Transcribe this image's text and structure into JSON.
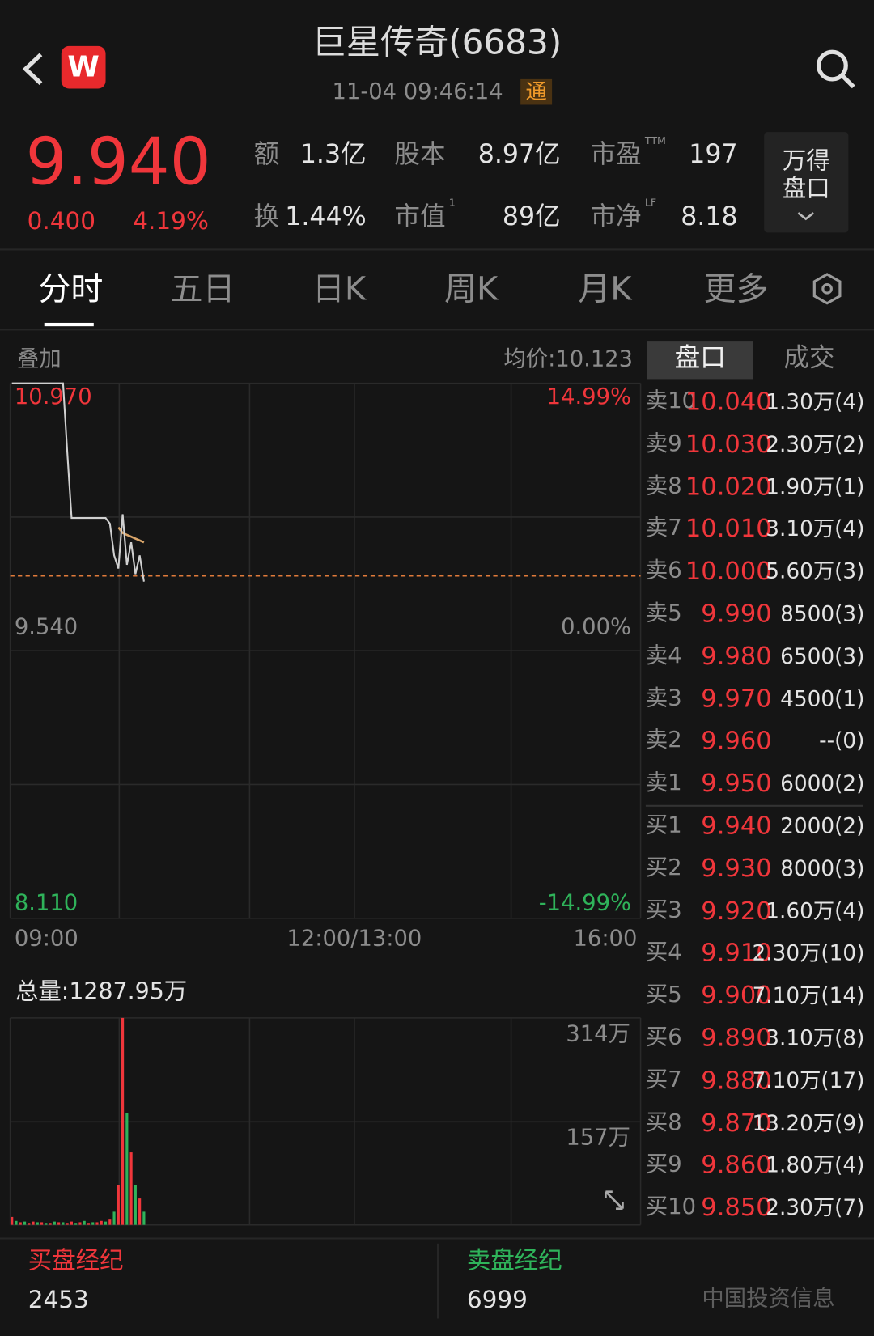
{
  "header": {
    "logo": "W",
    "title": "巨星传奇(6683)",
    "datetime": "11-04 09:46:14",
    "badge": "通"
  },
  "quote": {
    "price": "9.940",
    "change": "0.400",
    "change_pct": "4.19%",
    "stats": [
      {
        "label": "额",
        "sup": "",
        "value": "1.3亿"
      },
      {
        "label": "股本",
        "sup": "",
        "value": "8.97亿"
      },
      {
        "label": "市盈",
        "sup": "TTM",
        "value": "197"
      },
      {
        "label": "换",
        "sup": "",
        "value": "1.44%"
      },
      {
        "label": "市值",
        "sup": "1",
        "value": "89亿"
      },
      {
        "label": "市净",
        "sup": "LF",
        "value": "8.18"
      }
    ],
    "button": [
      "万得",
      "盘口"
    ]
  },
  "tabs": [
    "分时",
    "五日",
    "日K",
    "周K",
    "月K",
    "更多"
  ],
  "panel_tabs": [
    "盘口",
    "成交"
  ],
  "intraday": {
    "overlay": "叠加",
    "avg_label": "均价:10.123",
    "ylim": [
      8.11,
      10.97
    ],
    "yticks": [
      {
        "value": 10.97,
        "label": "10.970"
      },
      {
        "value": 9.54,
        "label": "9.540"
      },
      {
        "value": 8.11,
        "label": "8.110"
      }
    ],
    "pct_labels": [
      "14.99%",
      "0.00%",
      "-14.99%"
    ],
    "x_labels": [
      "09:00",
      "12:00/13:00",
      "16:00"
    ],
    "price": [
      10.97,
      10.97,
      10.97,
      10.97,
      10.97,
      10.97,
      10.97,
      10.97,
      10.97,
      10.97,
      10.97,
      10.97,
      10.97,
      10.6,
      10.25,
      10.25,
      10.25,
      10.25,
      10.25,
      10.25,
      10.25,
      10.25,
      10.25,
      10.22,
      10.05,
      9.98,
      10.27,
      10.0,
      10.12,
      9.95,
      10.05,
      9.91
    ],
    "avg": [
      null,
      null,
      null,
      null,
      null,
      null,
      null,
      null,
      null,
      null,
      null,
      null,
      null,
      null,
      null,
      null,
      null,
      null,
      null,
      null,
      null,
      null,
      null,
      null,
      null,
      10.2,
      10.17,
      10.16,
      10.15,
      10.14,
      10.13,
      10.12
    ]
  },
  "volume": {
    "total_label": "总量:1287.95万",
    "ylim": [
      0,
      314
    ],
    "yticks": [
      {
        "value": 314,
        "label": "314万"
      },
      {
        "value": 157,
        "label": "157万"
      }
    ],
    "up": [
      12,
      null,
      4,
      null,
      3,
      5,
      null,
      4,
      null,
      3,
      null,
      4,
      null,
      3,
      5,
      null,
      4,
      null,
      3,
      null,
      4,
      6,
      null,
      8,
      null,
      60,
      314,
      null,
      110,
      null,
      40,
      null
    ],
    "down": [
      null,
      6,
      null,
      5,
      null,
      null,
      4,
      null,
      3,
      null,
      5,
      null,
      4,
      null,
      null,
      3,
      null,
      6,
      null,
      4,
      null,
      null,
      5,
      null,
      20,
      null,
      null,
      170,
      null,
      60,
      null,
      20
    ]
  },
  "order_book": {
    "asks": [
      {
        "level": "卖10",
        "price": "10.040",
        "qty": "1.30万(4)"
      },
      {
        "level": "卖9",
        "price": "10.030",
        "qty": "2.30万(2)"
      },
      {
        "level": "卖8",
        "price": "10.020",
        "qty": "1.90万(1)"
      },
      {
        "level": "卖7",
        "price": "10.010",
        "qty": "3.10万(4)"
      },
      {
        "level": "卖6",
        "price": "10.000",
        "qty": "5.60万(3)"
      },
      {
        "level": "卖5",
        "price": "9.990",
        "qty": "8500(3)"
      },
      {
        "level": "卖4",
        "price": "9.980",
        "qty": "6500(3)"
      },
      {
        "level": "卖3",
        "price": "9.970",
        "qty": "4500(1)"
      },
      {
        "level": "卖2",
        "price": "9.960",
        "qty": "--(0)"
      },
      {
        "level": "卖1",
        "price": "9.950",
        "qty": "6000(2)"
      }
    ],
    "bids": [
      {
        "level": "买1",
        "price": "9.940",
        "qty": "2000(2)"
      },
      {
        "level": "买2",
        "price": "9.930",
        "qty": "8000(3)"
      },
      {
        "level": "买3",
        "price": "9.920",
        "qty": "1.60万(4)"
      },
      {
        "level": "买4",
        "price": "9.910",
        "qty": "2.30万(10)"
      },
      {
        "level": "买5",
        "price": "9.900",
        "qty": "7.10万(14)"
      },
      {
        "level": "买6",
        "price": "9.890",
        "qty": "3.10万(8)"
      },
      {
        "level": "买7",
        "price": "9.880",
        "qty": "7.10万(17)"
      },
      {
        "level": "买8",
        "price": "9.870",
        "qty": "13.20万(9)"
      },
      {
        "level": "买9",
        "price": "9.860",
        "qty": "1.80万(4)"
      },
      {
        "level": "买10",
        "price": "9.850",
        "qty": "2.30万(7)"
      }
    ]
  },
  "brokers": {
    "buy_label": "买盘经纪",
    "buy_value": "2453",
    "sell_label": "卖盘经纪",
    "sell_value": "6999",
    "source": "中国投资信息"
  }
}
